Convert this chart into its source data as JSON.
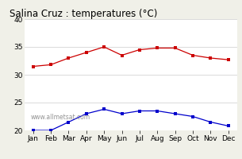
{
  "title": "Salina Cruz : temperatures (°C)",
  "months": [
    "Jan",
    "Feb",
    "Mar",
    "Apr",
    "May",
    "Jun",
    "Jul",
    "Aug",
    "Sep",
    "Oct",
    "Nov",
    "Dec"
  ],
  "red_line": [
    31.5,
    31.8,
    33.0,
    34.0,
    35.0,
    33.5,
    34.5,
    34.8,
    34.8,
    33.5,
    33.0,
    32.7
  ],
  "blue_line": [
    20.0,
    20.0,
    21.5,
    23.0,
    23.8,
    23.0,
    23.5,
    23.5,
    23.0,
    22.5,
    21.5,
    20.8
  ],
  "ylim": [
    20,
    40
  ],
  "yticks": [
    20,
    25,
    30,
    35,
    40
  ],
  "red_color": "#cc0000",
  "blue_color": "#0000cc",
  "bg_color": "#f0f0e8",
  "plot_bg": "#ffffff",
  "grid_color": "#cccccc",
  "watermark": "www.allmetsat.com",
  "title_fontsize": 8.5,
  "tick_fontsize": 6.5,
  "watermark_fontsize": 5.5
}
